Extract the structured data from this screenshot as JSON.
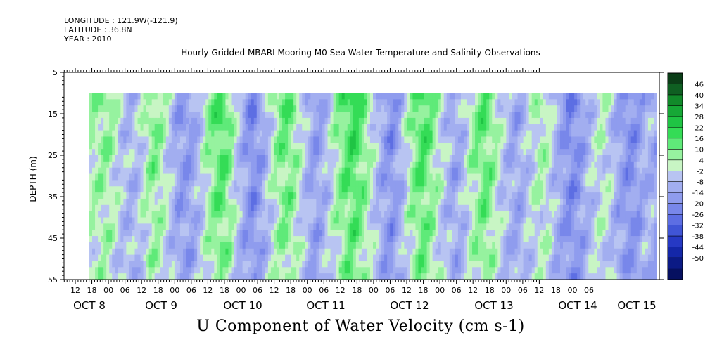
{
  "header": {
    "longitude": "LONGITUDE : 121.9W(-121.9)",
    "latitude": "LATITUDE : 36.8N",
    "year": "YEAR : 2010"
  },
  "chart_data": {
    "type": "heatmap",
    "title": "Hourly Gridded MBARI Mooring M0 Sea Water Temperature and Salinity Observations",
    "bottom_title": "U Component of Water Velocity (cm s-1)",
    "ylabel": "DEPTH (m)",
    "ylim": [
      5,
      55
    ],
    "y_inverted": true,
    "y_ticks": [
      5,
      15,
      25,
      35,
      45,
      55
    ],
    "data_depth_range": [
      10,
      55
    ],
    "x_hour_ticks": [
      "12",
      "18",
      "00",
      "06",
      "12",
      "18",
      "00",
      "06",
      "12",
      "18",
      "00",
      "06",
      "12",
      "18",
      "00",
      "06",
      "12",
      "18",
      "00",
      "06",
      "12",
      "18",
      "00",
      "06",
      "12",
      "18",
      "00",
      "06",
      "12",
      "18",
      "00",
      "06"
    ],
    "x_day_labels": [
      "OCT 8",
      "OCT 9",
      "OCT 10",
      "OCT 11",
      "OCT 12",
      "OCT 13",
      "OCT 14",
      "OCT 15"
    ],
    "colorbar": {
      "labels": [
        "46",
        "40",
        "34",
        "28",
        "22",
        "16",
        "10",
        "4",
        "-2",
        "-8",
        "-14",
        "-20",
        "-26",
        "-32",
        "-38",
        "-44",
        "-50"
      ],
      "colors": [
        "#0b3d17",
        "#0f5f22",
        "#118a2a",
        "#16a836",
        "#1fc444",
        "#34dc56",
        "#5fea79",
        "#96f29f",
        "#c8f5c4",
        "#b8c4f2",
        "#a2aef0",
        "#8f9cee",
        "#7887ea",
        "#5d6ee3",
        "#4055d6",
        "#2639c4",
        "#1427a8",
        "#0b1a85",
        "#061060"
      ]
    },
    "time_columns_vs_day": [
      "OCT 8 13:00",
      "OCT 15 10:00"
    ],
    "column_mean_u": [
      4,
      6,
      8,
      2,
      -4,
      -8,
      -6,
      2,
      10,
      6,
      -2,
      -12,
      -16,
      -14,
      -6,
      4,
      12,
      16,
      8,
      -4,
      -14,
      -20,
      -14,
      -4,
      6,
      12,
      10,
      2,
      -8,
      -14,
      -10,
      -2,
      8,
      14,
      18,
      12,
      4,
      -6,
      -14,
      -18,
      -10,
      2,
      12,
      16,
      10,
      2,
      -6,
      -12,
      -8,
      2,
      10,
      14,
      8,
      -2,
      -8,
      -12,
      -8,
      -2,
      4,
      2,
      -6,
      -14,
      -20,
      -18,
      -10,
      -4,
      2,
      -2,
      -10,
      -16,
      -18,
      -14,
      -8,
      -12
    ]
  }
}
